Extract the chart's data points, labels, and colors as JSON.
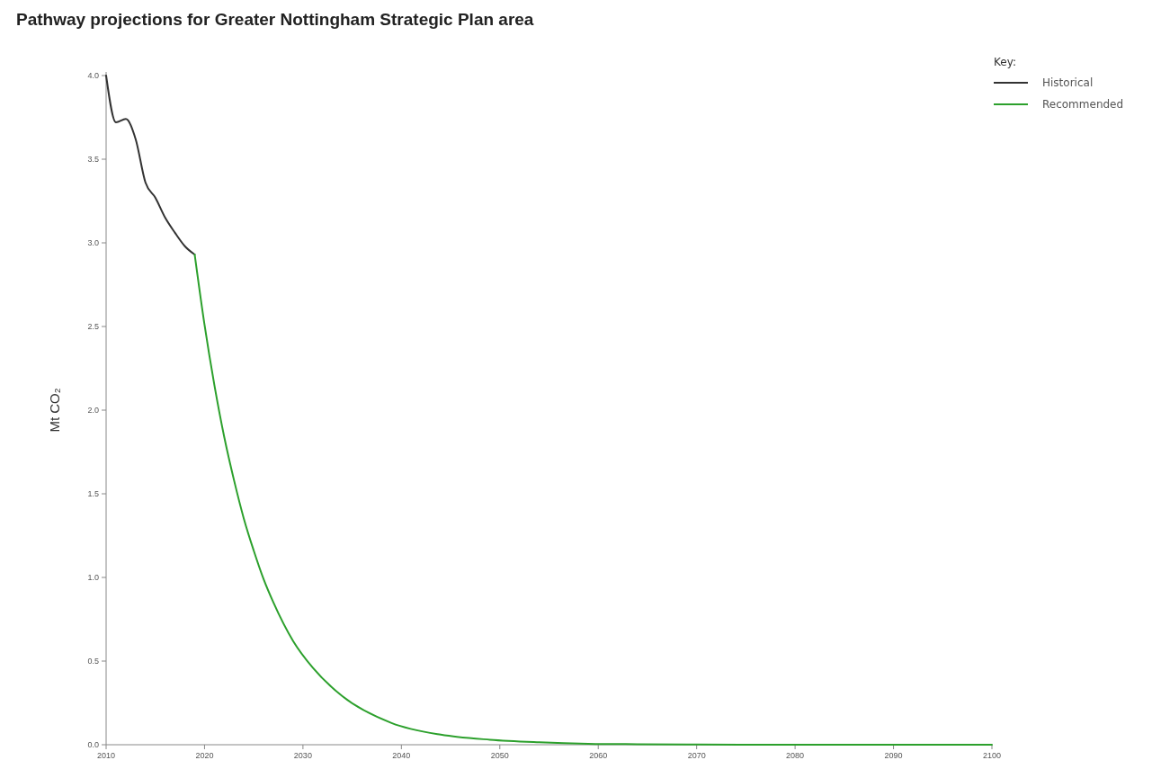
{
  "chart_data": {
    "type": "line",
    "title": "Pathway projections for Greater Nottingham Strategic Plan area",
    "ylabel": "Mt CO₂",
    "legend_title": "Key:",
    "legend": "top right",
    "xlim": [
      2010,
      2100
    ],
    "xticks": [
      2010,
      2020,
      2030,
      2040,
      2050,
      2060,
      2070,
      2080,
      2090,
      2100
    ],
    "ylim": [
      0,
      4
    ],
    "yticks": [
      {
        "value": 0,
        "label": "0.0"
      },
      {
        "value": 0.5,
        "label": "0.5"
      },
      {
        "value": 1,
        "label": "1.0"
      },
      {
        "value": 1.5,
        "label": "1.5"
      },
      {
        "value": 2,
        "label": "2.0"
      },
      {
        "value": 2.5,
        "label": "2.5"
      },
      {
        "value": 3,
        "label": "3.0"
      },
      {
        "value": 3.5,
        "label": "3.5"
      },
      {
        "value": 4,
        "label": "4.0"
      }
    ],
    "grid": false,
    "marker": "none",
    "line_style": "solid",
    "series": [
      {
        "name": "Historical",
        "color": "#333333",
        "x": [
          2010,
          2011,
          2012,
          2013,
          2014,
          2015,
          2016,
          2017,
          2018,
          2019
        ],
        "values": [
          4.0,
          3.72,
          3.74,
          3.62,
          3.36,
          3.27,
          3.15,
          3.06,
          2.98,
          2.93
        ]
      },
      {
        "name": "Recommended",
        "color": "#2ca02c",
        "x": [
          2019,
          2020,
          2021,
          2022,
          2023,
          2024,
          2025,
          2026,
          2027,
          2029,
          2031,
          2034,
          2039,
          2044,
          2049,
          2054,
          2059,
          2064,
          2070,
          2080,
          2090,
          2100
        ],
        "values": [
          2.93,
          2.51,
          2.15,
          1.84,
          1.58,
          1.35,
          1.16,
          0.99,
          0.85,
          0.62,
          0.46,
          0.29,
          0.13,
          0.06,
          0.03,
          0.015,
          0.006,
          0.003,
          0.001,
          0,
          0,
          0
        ]
      }
    ]
  }
}
